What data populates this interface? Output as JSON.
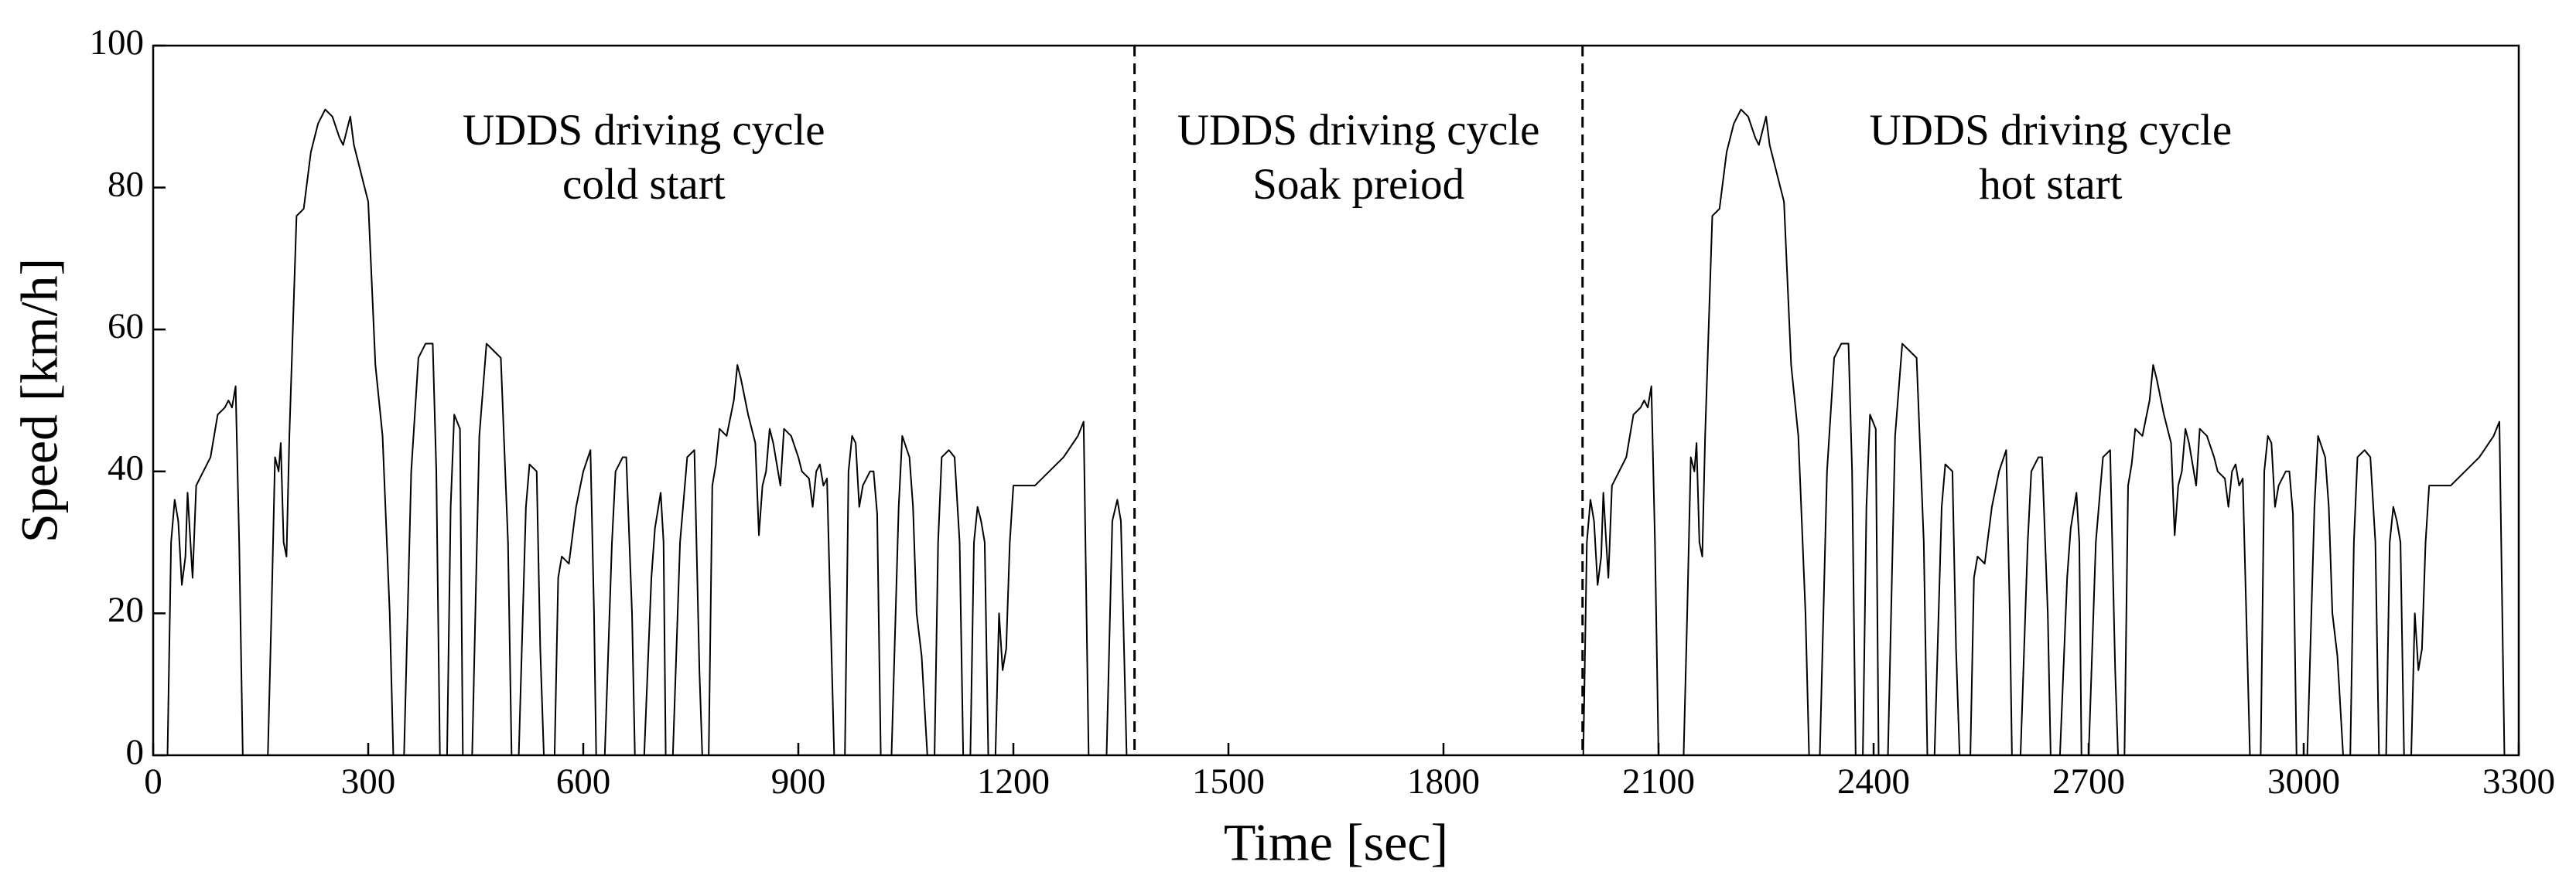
{
  "chart_data": {
    "type": "line",
    "xlabel": "Time [sec]",
    "ylabel": "Speed [km/h]",
    "xlim": [
      0,
      3300
    ],
    "xticks": [
      0,
      300,
      600,
      900,
      1200,
      1500,
      1800,
      2100,
      2400,
      2700,
      3000,
      3300
    ],
    "ylim": [
      0,
      100
    ],
    "yticks": [
      0,
      20,
      40,
      60,
      80,
      100
    ],
    "color": "#000000",
    "vlines": [
      1369,
      1994
    ],
    "annotations": [
      [
        "UDDS driving cycle",
        "cold start"
      ],
      [
        "UDDS driving cycle",
        "Soak preiod"
      ],
      [
        "UDDS driving cycle",
        "hot start"
      ]
    ],
    "x": [
      0,
      20,
      25,
      30,
      35,
      40,
      45,
      48,
      52,
      55,
      60,
      70,
      80,
      90,
      100,
      105,
      110,
      115,
      120,
      125,
      160,
      165,
      170,
      175,
      178,
      182,
      186,
      190,
      200,
      210,
      220,
      230,
      240,
      250,
      260,
      265,
      270,
      275,
      280,
      290,
      300,
      310,
      320,
      330,
      335,
      350,
      360,
      370,
      380,
      390,
      395,
      400,
      410,
      415,
      420,
      428,
      432,
      445,
      455,
      465,
      475,
      485,
      495,
      500,
      510,
      520,
      525,
      535,
      540,
      545,
      560,
      565,
      570,
      580,
      590,
      600,
      610,
      615,
      618,
      630,
      640,
      645,
      655,
      660,
      668,
      672,
      685,
      695,
      700,
      708,
      712,
      715,
      725,
      735,
      745,
      755,
      762,
      766,
      775,
      780,
      785,
      790,
      800,
      810,
      815,
      820,
      830,
      840,
      845,
      850,
      855,
      860,
      865,
      875,
      880,
      890,
      900,
      905,
      915,
      920,
      925,
      930,
      935,
      940,
      950,
      965,
      970,
      975,
      980,
      985,
      990,
      1000,
      1005,
      1010,
      1015,
      1030,
      1040,
      1045,
      1055,
      1060,
      1065,
      1072,
      1080,
      1090,
      1095,
      1100,
      1110,
      1118,
      1125,
      1130,
      1140,
      1145,
      1150,
      1155,
      1160,
      1165,
      1175,
      1180,
      1185,
      1190,
      1195,
      1200,
      1230,
      1250,
      1270,
      1290,
      1298,
      1305,
      1330,
      1338,
      1345,
      1350,
      1358,
      1369,
      1995,
      2000,
      2005,
      2010,
      2015,
      2020,
      2023,
      2027,
      2030,
      2035,
      2045,
      2055,
      2065,
      2075,
      2080,
      2085,
      2090,
      2095,
      2100,
      2135,
      2140,
      2145,
      2150,
      2153,
      2157,
      2161,
      2165,
      2175,
      2185,
      2195,
      2205,
      2215,
      2225,
      2235,
      2240,
      2245,
      2250,
      2255,
      2265,
      2275,
      2285,
      2295,
      2305,
      2310,
      2325,
      2335,
      2345,
      2355,
      2365,
      2370,
      2375,
      2385,
      2390,
      2395,
      2403,
      2407,
      2420,
      2430,
      2440,
      2450,
      2460,
      2470,
      2475,
      2485,
      2495,
      2500,
      2510,
      2515,
      2520,
      2535,
      2540,
      2545,
      2555,
      2565,
      2575,
      2585,
      2590,
      2593,
      2605,
      2615,
      2620,
      2630,
      2635,
      2643,
      2647,
      2660,
      2670,
      2675,
      2683,
      2687,
      2690,
      2700,
      2710,
      2720,
      2730,
      2737,
      2741,
      2750,
      2755,
      2760,
      2765,
      2775,
      2785,
      2790,
      2795,
      2805,
      2815,
      2820,
      2825,
      2830,
      2835,
      2840,
      2850,
      2855,
      2865,
      2875,
      2880,
      2890,
      2895,
      2900,
      2905,
      2910,
      2915,
      2925,
      2940,
      2945,
      2950,
      2955,
      2960,
      2965,
      2975,
      2980,
      2985,
      2990,
      3005,
      3015,
      3020,
      3030,
      3035,
      3040,
      3047,
      3055,
      3065,
      3070,
      3075,
      3085,
      3093,
      3100,
      3105,
      3115,
      3120,
      3125,
      3130,
      3135,
      3140,
      3150,
      3155,
      3160,
      3165,
      3170,
      3175,
      3205,
      3225,
      3245,
      3265,
      3273,
      3280,
      3300
    ],
    "values": [
      0,
      0,
      30,
      36,
      33,
      24,
      28,
      37,
      30,
      25,
      38,
      40,
      42,
      48,
      49,
      50,
      49,
      52,
      30,
      0,
      0,
      20,
      42,
      40,
      44,
      30,
      28,
      45,
      76,
      77,
      85,
      89,
      91,
      90,
      87,
      86,
      88,
      90,
      86,
      82,
      78,
      55,
      45,
      20,
      0,
      0,
      40,
      56,
      58,
      58,
      40,
      0,
      0,
      35,
      48,
      46,
      0,
      0,
      45,
      58,
      57,
      56,
      30,
      0,
      0,
      35,
      41,
      40,
      15,
      0,
      0,
      25,
      28,
      27,
      35,
      40,
      43,
      20,
      0,
      0,
      30,
      40,
      42,
      42,
      20,
      0,
      0,
      25,
      32,
      37,
      30,
      0,
      0,
      30,
      42,
      43,
      12,
      0,
      0,
      38,
      41,
      46,
      45,
      50,
      55,
      53,
      48,
      44,
      31,
      38,
      40,
      46,
      44,
      38,
      46,
      45,
      42,
      40,
      39,
      35,
      40,
      41,
      38,
      39,
      0,
      0,
      40,
      45,
      44,
      35,
      38,
      40,
      40,
      34,
      0,
      0,
      35,
      45,
      42,
      35,
      20,
      14,
      0,
      0,
      30,
      42,
      43,
      42,
      30,
      0,
      0,
      30,
      35,
      33,
      30,
      0,
      0,
      20,
      12,
      15,
      30,
      38,
      38,
      40,
      42,
      45,
      47,
      0,
      0,
      33,
      36,
      33,
      0,
      0,
      0,
      30,
      36,
      33,
      24,
      28,
      37,
      30,
      25,
      38,
      40,
      42,
      48,
      49,
      50,
      49,
      52,
      30,
      0,
      0,
      20,
      42,
      40,
      44,
      30,
      28,
      45,
      76,
      77,
      85,
      89,
      91,
      90,
      87,
      86,
      88,
      90,
      86,
      82,
      78,
      55,
      45,
      20,
      0,
      0,
      40,
      56,
      58,
      58,
      40,
      0,
      0,
      35,
      48,
      46,
      0,
      0,
      45,
      58,
      57,
      56,
      30,
      0,
      0,
      35,
      41,
      40,
      15,
      0,
      0,
      25,
      28,
      27,
      35,
      40,
      43,
      20,
      0,
      0,
      30,
      40,
      42,
      42,
      20,
      0,
      0,
      25,
      32,
      37,
      30,
      0,
      0,
      30,
      42,
      43,
      12,
      0,
      0,
      38,
      41,
      46,
      45,
      50,
      55,
      53,
      48,
      44,
      31,
      38,
      40,
      46,
      44,
      38,
      46,
      45,
      42,
      40,
      39,
      35,
      40,
      41,
      38,
      39,
      0,
      0,
      40,
      45,
      44,
      35,
      38,
      40,
      40,
      34,
      0,
      0,
      35,
      45,
      42,
      35,
      20,
      14,
      0,
      0,
      30,
      42,
      43,
      42,
      30,
      0,
      0,
      30,
      35,
      33,
      30,
      0,
      0,
      20,
      12,
      15,
      30,
      38,
      38,
      40,
      42,
      45,
      47,
      0,
      0
    ]
  }
}
